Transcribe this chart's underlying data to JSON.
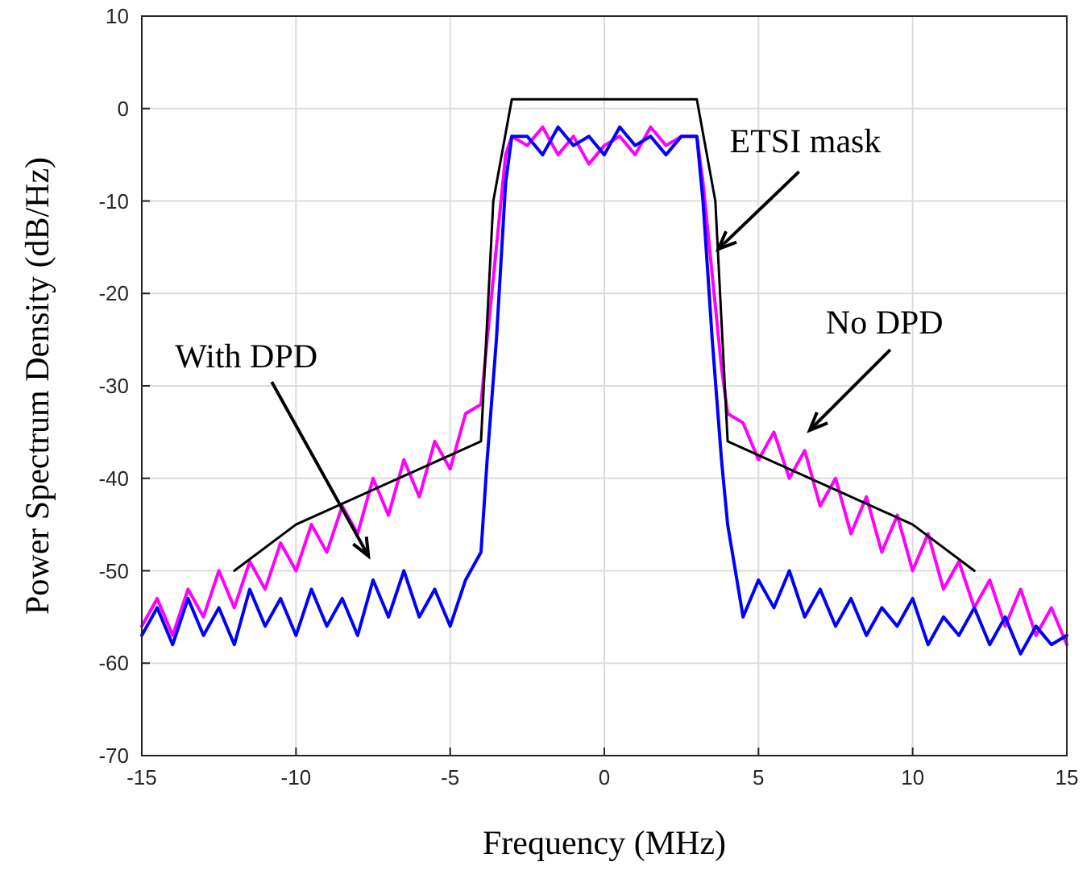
{
  "chart_data": {
    "type": "line",
    "xlabel": "Frequency (MHz)",
    "ylabel": "Power Spectrum Density (dB/Hz)",
    "x": [
      -15,
      -14.5,
      -14,
      -13.5,
      -13,
      -12.5,
      -12,
      -11.5,
      -11,
      -10.5,
      -10,
      -9.5,
      -9,
      -8.5,
      -8,
      -7.5,
      -7,
      -6.5,
      -6,
      -5.5,
      -5,
      -4.5,
      -4,
      -3.8,
      -3.5,
      -3.2,
      -3,
      -2.5,
      -2,
      -1.5,
      -1,
      -0.5,
      0,
      0.5,
      1,
      1.5,
      2,
      2.5,
      3,
      3.2,
      3.5,
      3.8,
      4,
      4.5,
      5,
      5.5,
      6,
      6.5,
      7,
      7.5,
      8,
      8.5,
      9,
      9.5,
      10,
      10.5,
      11,
      11.5,
      12,
      12.5,
      13,
      13.5,
      14,
      14.5,
      15
    ],
    "series": [
      {
        "color": "#ff00ff",
        "values": [
          -56,
          -53,
          -57,
          -52,
          -55,
          -50,
          -54,
          -49,
          -52,
          -47,
          -50,
          -45,
          -48,
          -43,
          -46,
          -40,
          -44,
          -38,
          -42,
          -36,
          -39,
          -33,
          -32,
          -25,
          -15,
          -5,
          -3,
          -4,
          -2,
          -5,
          -3,
          -6,
          -4,
          -3,
          -5,
          -2,
          -4,
          -3,
          -3,
          -8,
          -18,
          -28,
          -33,
          -34,
          -38,
          -35,
          -40,
          -37,
          -43,
          -40,
          -46,
          -42,
          -48,
          -44,
          -50,
          -46,
          -52,
          -49,
          -54,
          -51,
          -56,
          -52,
          -57,
          -54,
          -58
        ]
      },
      {
        "color": "#0000ff",
        "values": [
          -57,
          -54,
          -58,
          -53,
          -57,
          -54,
          -58,
          -52,
          -56,
          -53,
          -57,
          -52,
          -56,
          -53,
          -57,
          -51,
          -55,
          -50,
          -55,
          -52,
          -56,
          -51,
          -48,
          -38,
          -25,
          -8,
          -3,
          -3,
          -5,
          -2,
          -4,
          -3,
          -5,
          -2,
          -4,
          -3,
          -5,
          -3,
          -3,
          -10,
          -25,
          -38,
          -45,
          -55,
          -51,
          -54,
          -50,
          -55,
          -52,
          -56,
          -53,
          -57,
          -54,
          -56,
          -53,
          -58,
          -55,
          -57,
          -54,
          -58,
          -55,
          -59,
          -56,
          -58,
          -57
        ]
      },
      {
        "color": "#000000",
        "x": [
          -12,
          -10,
          -4,
          -3.6,
          -3,
          3,
          3.6,
          4,
          10,
          12
        ],
        "values": [
          -50,
          -45,
          -36,
          -10,
          1,
          1,
          -10,
          -36,
          -45,
          -50
        ]
      }
    ],
    "xlim": [
      -15,
      15
    ],
    "xticks": [
      -15,
      -10,
      -5,
      0,
      5,
      10,
      15
    ],
    "ylim": [
      -70,
      10
    ],
    "yticks": [
      -70,
      -60,
      -50,
      -40,
      -30,
      -20,
      -10,
      0,
      10
    ],
    "grid": true,
    "annotations": [
      {
        "text": "ETSI mask",
        "x": 3.7,
        "y": -15.2
      },
      "No DPD",
      "With DPD"
    ]
  }
}
